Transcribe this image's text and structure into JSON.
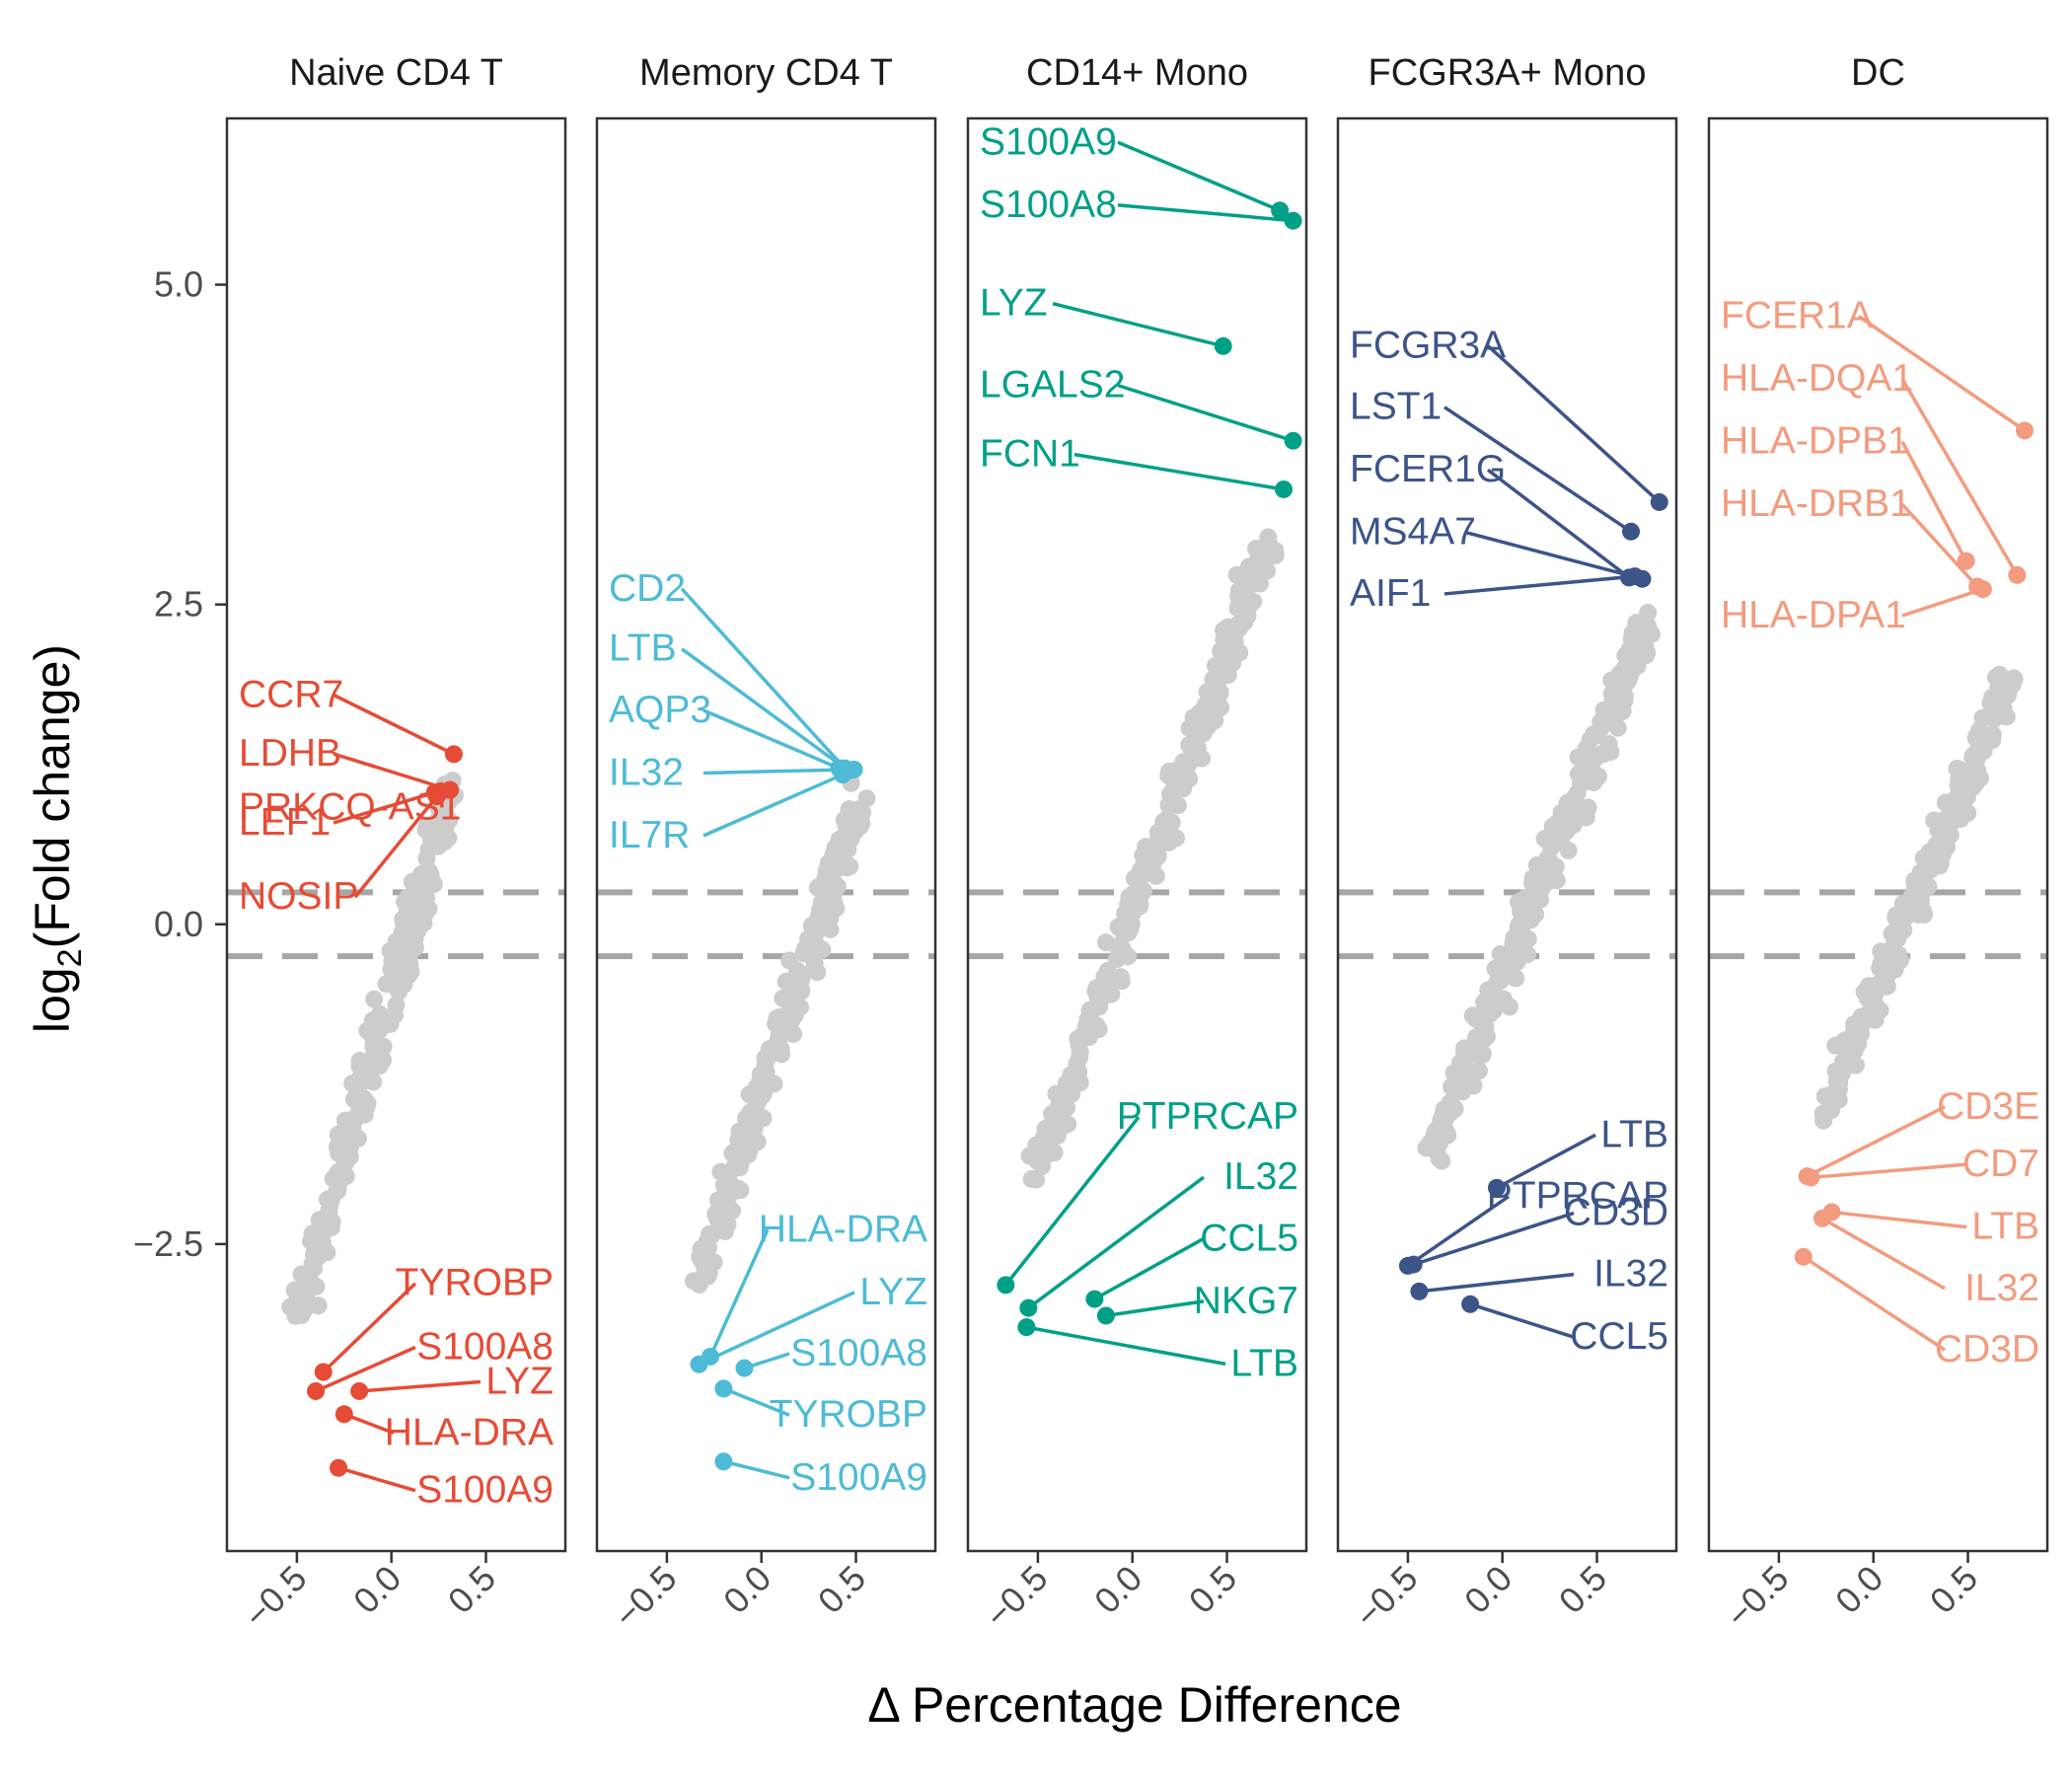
{
  "chart_data": {
    "type": "scatter",
    "xlabel": "Δ Percentage Difference",
    "ylabel": "log2(Fold change)",
    "ylabel_main": "log",
    "ylabel_sub": "2",
    "ylabel_rest": "(Fold change)",
    "xlim": [
      -0.87,
      0.92
    ],
    "ylim": [
      -4.9,
      6.3
    ],
    "x_ticks": [
      -0.5,
      0.0,
      0.5
    ],
    "x_tick_labels": [
      "−0.5",
      "0.0",
      "0.5"
    ],
    "y_ticks": [
      -2.5,
      0.0,
      2.5,
      5.0
    ],
    "y_tick_labels": [
      "−2.5",
      "0.0",
      "2.5",
      "5.0"
    ],
    "threshold_lines": [
      -0.25,
      0.25
    ],
    "background_color": "#cccccc",
    "panels": [
      {
        "name": "Naive CD4 T",
        "color": "#e64b35",
        "background_cloud": {
          "n": 230,
          "x_range": [
            -0.48,
            0.32
          ],
          "y_range": [
            -3.0,
            1.1
          ]
        },
        "labeled": [
          {
            "gene": "CCR7",
            "x": 0.33,
            "y": 1.33,
            "label_y": 1.7
          },
          {
            "gene": "LDHB",
            "x": 0.31,
            "y": 1.05,
            "label_y": 1.24
          },
          {
            "gene": "PRKCQ-AS1",
            "x": 0.26,
            "y": 1.04,
            "label_y": 0.82
          },
          {
            "gene": "LEF1",
            "x": 0.23,
            "y": 1.03,
            "label_y": 0.7
          },
          {
            "gene": "NOSIP",
            "x": 0.24,
            "y": 1.0,
            "label_y": 0.12
          },
          {
            "gene": "TYROBP",
            "x": -0.36,
            "y": -3.5,
            "label_y": -2.9
          },
          {
            "gene": "S100A8",
            "x": -0.4,
            "y": -3.65,
            "label_y": -3.4
          },
          {
            "gene": "LYZ",
            "x": -0.17,
            "y": -3.65,
            "label_y": -3.67
          },
          {
            "gene": "HLA-DRA",
            "x": -0.25,
            "y": -3.83,
            "label_y": -4.07
          },
          {
            "gene": "S100A9",
            "x": -0.28,
            "y": -4.25,
            "label_y": -4.52
          }
        ]
      },
      {
        "name": "Memory CD4 T",
        "color": "#4dbbd5",
        "background_cloud": {
          "n": 230,
          "x_range": [
            -0.35,
            0.52
          ],
          "y_range": [
            -2.8,
            0.95
          ]
        },
        "labeled": [
          {
            "gene": "CD2",
            "x": 0.44,
            "y": 1.22,
            "label_y": 2.53
          },
          {
            "gene": "LTB",
            "x": 0.46,
            "y": 1.2,
            "label_y": 2.06
          },
          {
            "gene": "AQP3",
            "x": 0.41,
            "y": 1.22,
            "label_y": 1.58
          },
          {
            "gene": "IL32",
            "x": 0.49,
            "y": 1.21,
            "label_y": 1.09
          },
          {
            "gene": "IL7R",
            "x": 0.43,
            "y": 1.17,
            "label_y": 0.6
          },
          {
            "gene": "HLA-DRA",
            "x": -0.27,
            "y": -3.38,
            "label_y": -2.48
          },
          {
            "gene": "LYZ",
            "x": -0.33,
            "y": -3.44,
            "label_y": -2.97
          },
          {
            "gene": "S100A8",
            "x": -0.09,
            "y": -3.47,
            "label_y": -3.45
          },
          {
            "gene": "TYROBP",
            "x": -0.2,
            "y": -3.63,
            "label_y": -3.93
          },
          {
            "gene": "S100A9",
            "x": -0.2,
            "y": -4.2,
            "label_y": -4.42
          }
        ]
      },
      {
        "name": "CD14+ Mono",
        "color": "#00a087",
        "background_cloud": {
          "n": 260,
          "x_range": [
            -0.52,
            0.72
          ],
          "y_range": [
            -2.0,
            3.0
          ]
        },
        "labeled": [
          {
            "gene": "S100A9",
            "x": 0.78,
            "y": 5.58,
            "label_y": 6.02
          },
          {
            "gene": "S100A8",
            "x": 0.85,
            "y": 5.5,
            "label_y": 5.53
          },
          {
            "gene": "LYZ",
            "x": 0.48,
            "y": 4.52,
            "label_y": 4.76
          },
          {
            "gene": "LGALS2",
            "x": 0.85,
            "y": 3.78,
            "label_y": 4.12
          },
          {
            "gene": "FCN1",
            "x": 0.8,
            "y": 3.4,
            "label_y": 3.58
          },
          {
            "gene": "PTPRCAP",
            "x": -0.67,
            "y": -2.82,
            "label_y": -1.6
          },
          {
            "gene": "IL32",
            "x": -0.55,
            "y": -3.0,
            "label_y": -2.07
          },
          {
            "gene": "CCL5",
            "x": -0.2,
            "y": -2.93,
            "label_y": -2.55
          },
          {
            "gene": "NKG7",
            "x": -0.14,
            "y": -3.06,
            "label_y": -3.04
          },
          {
            "gene": "LTB",
            "x": -0.56,
            "y": -3.15,
            "label_y": -3.53
          }
        ]
      },
      {
        "name": "FCGR3A+ Mono",
        "color": "#3c5488",
        "background_cloud": {
          "n": 260,
          "x_range": [
            -0.38,
            0.78
          ],
          "y_range": [
            -1.8,
            2.4
          ]
        },
        "labeled": [
          {
            "gene": "FCGR3A",
            "x": 0.83,
            "y": 3.3,
            "label_y": 4.43
          },
          {
            "gene": "LST1",
            "x": 0.68,
            "y": 3.07,
            "label_y": 3.95
          },
          {
            "gene": "FCER1G",
            "x": 0.67,
            "y": 2.71,
            "label_y": 3.46
          },
          {
            "gene": "MS4A7",
            "x": 0.74,
            "y": 2.7,
            "label_y": 2.97
          },
          {
            "gene": "AIF1",
            "x": 0.7,
            "y": 2.72,
            "label_y": 2.49
          },
          {
            "gene": "LTB",
            "x": -0.03,
            "y": -2.06,
            "label_y": -1.74
          },
          {
            "gene": "PTPRCAP",
            "x": -0.5,
            "y": -2.67,
            "label_y": -2.22
          },
          {
            "gene": "CD3D",
            "x": -0.47,
            "y": -2.66,
            "label_y": -2.35
          },
          {
            "gene": "IL32",
            "x": -0.44,
            "y": -2.87,
            "label_y": -2.83
          },
          {
            "gene": "CCL5",
            "x": -0.17,
            "y": -2.97,
            "label_y": -3.32
          }
        ]
      },
      {
        "name": "DC",
        "color": "#f39b7f",
        "background_cloud": {
          "n": 220,
          "x_range": [
            -0.28,
            0.72
          ],
          "y_range": [
            -1.5,
            1.9
          ]
        },
        "labeled": [
          {
            "gene": "FCER1A",
            "x": 0.8,
            "y": 3.86,
            "label_y": 4.66
          },
          {
            "gene": "HLA-DQA1",
            "x": 0.76,
            "y": 2.73,
            "label_y": 4.17
          },
          {
            "gene": "HLA-DPB1",
            "x": 0.49,
            "y": 2.84,
            "label_y": 3.68
          },
          {
            "gene": "HLA-DRB1",
            "x": 0.55,
            "y": 2.64,
            "label_y": 3.19
          },
          {
            "gene": "HLA-DPA1",
            "x": 0.58,
            "y": 2.62,
            "label_y": 2.32
          },
          {
            "gene": "CD3E",
            "x": -0.35,
            "y": -1.97,
            "label_y": -1.52
          },
          {
            "gene": "CD7",
            "x": -0.33,
            "y": -1.98,
            "label_y": -1.97
          },
          {
            "gene": "LTB",
            "x": -0.22,
            "y": -2.25,
            "label_y": -2.46
          },
          {
            "gene": "IL32",
            "x": -0.27,
            "y": -2.3,
            "label_y": -2.94
          },
          {
            "gene": "CD3D",
            "x": -0.37,
            "y": -2.6,
            "label_y": -3.42
          }
        ]
      }
    ]
  }
}
